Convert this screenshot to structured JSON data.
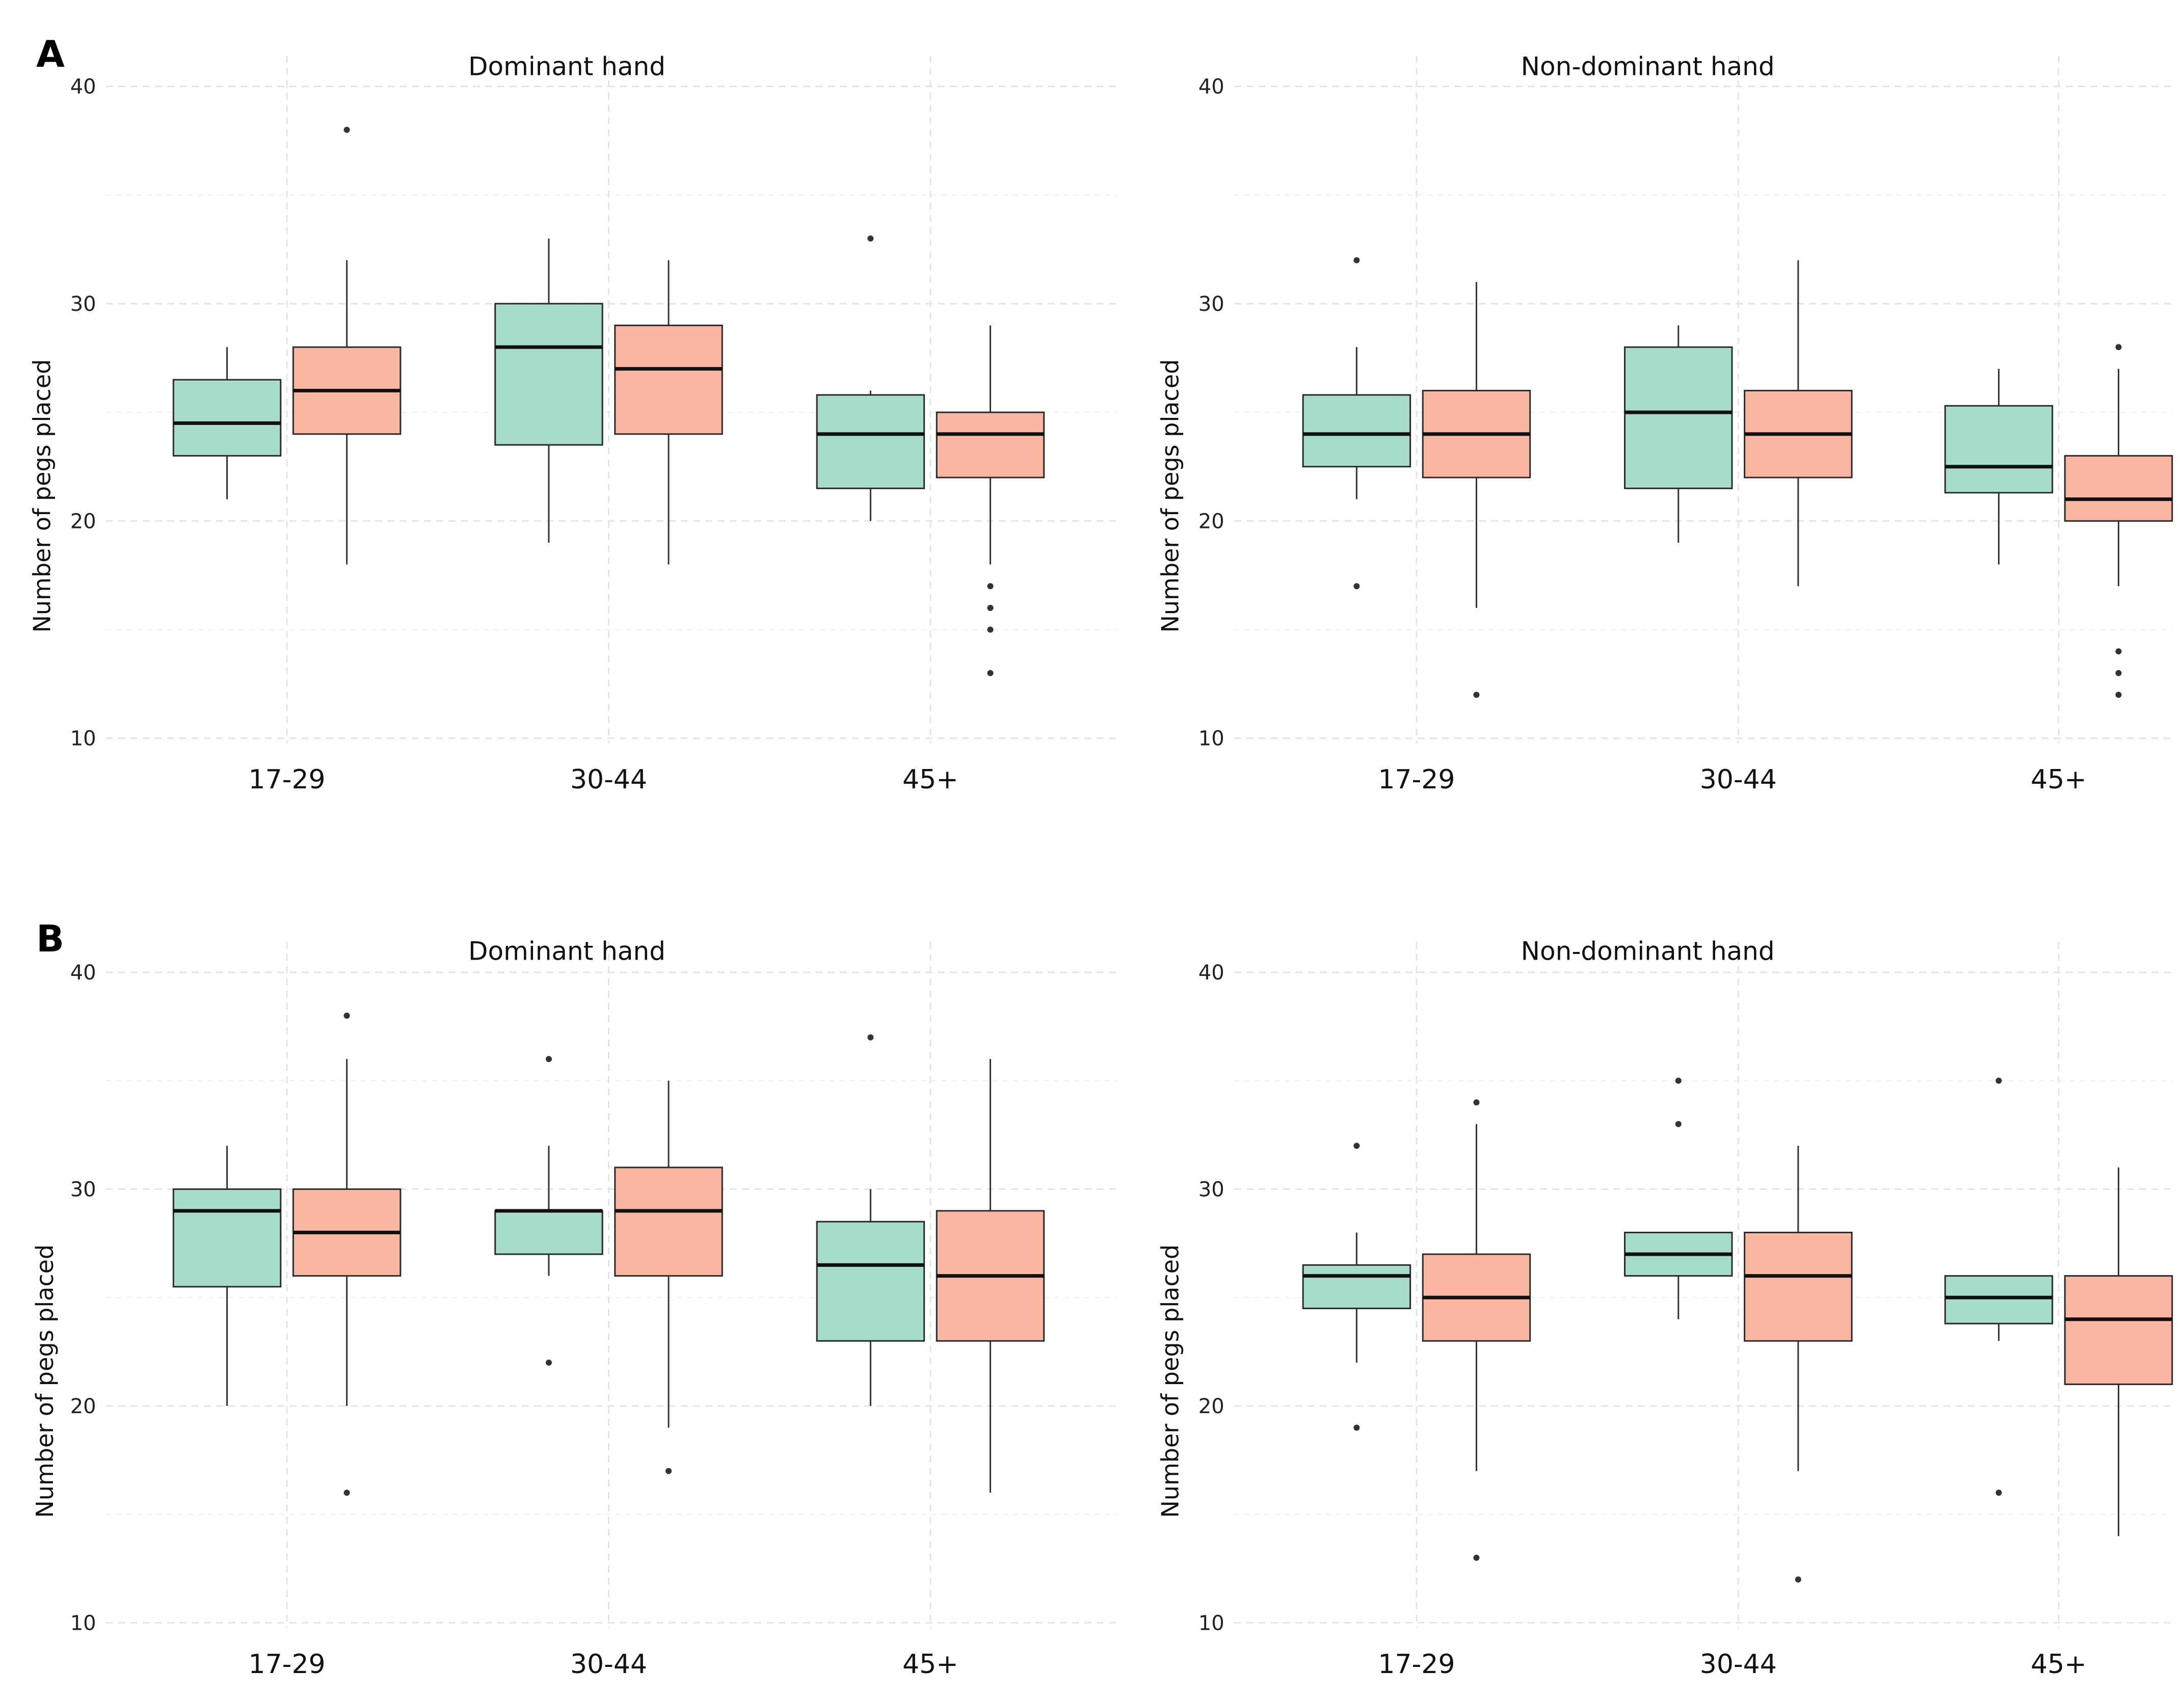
{
  "colors": {
    "group1": "#a6dcc8",
    "group2": "#f9b6a0"
  },
  "chart_data": [
    {
      "type": "box",
      "panel": "A",
      "title": "Dominant hand",
      "xlabel": "",
      "ylabel": "Number of pegs placed",
      "ylim": [
        10,
        40
      ],
      "yticks": [
        "10",
        "20",
        "30",
        "40"
      ],
      "categories": [
        "17-29",
        "30-44",
        "45+"
      ],
      "series": [
        {
          "name": "group1",
          "boxes": [
            {
              "min": 21,
              "q1": 23,
              "median": 24.5,
              "q3": 26.5,
              "max": 28,
              "outliers": []
            },
            {
              "min": 19,
              "q1": 23.5,
              "median": 28,
              "q3": 30,
              "max": 33,
              "outliers": []
            },
            {
              "min": 20,
              "q1": 21.5,
              "median": 24,
              "q3": 25.8,
              "max": 26,
              "outliers": [
                33
              ]
            }
          ]
        },
        {
          "name": "group2",
          "boxes": [
            {
              "min": 18,
              "q1": 24,
              "median": 26,
              "q3": 28,
              "max": 32,
              "outliers": [
                38
              ]
            },
            {
              "min": 18,
              "q1": 24,
              "median": 27,
              "q3": 29,
              "max": 32,
              "outliers": []
            },
            {
              "min": 18,
              "q1": 22,
              "median": 24,
              "q3": 25,
              "max": 29,
              "outliers": [
                17,
                16,
                16,
                15,
                13
              ]
            }
          ]
        }
      ]
    },
    {
      "type": "box",
      "panel": "",
      "title": "Non-dominant hand",
      "xlabel": "",
      "ylabel": "Number of pegs placed",
      "ylim": [
        10,
        40
      ],
      "yticks": [
        "10",
        "20",
        "30",
        "40"
      ],
      "categories": [
        "17-29",
        "30-44",
        "45+"
      ],
      "series": [
        {
          "name": "group1",
          "boxes": [
            {
              "min": 21,
              "q1": 22.5,
              "median": 24,
              "q3": 25.8,
              "max": 28,
              "outliers": [
                32,
                17
              ]
            },
            {
              "min": 19,
              "q1": 21.5,
              "median": 25,
              "q3": 28,
              "max": 29,
              "outliers": []
            },
            {
              "min": 18,
              "q1": 21.3,
              "median": 22.5,
              "q3": 25.3,
              "max": 27,
              "outliers": []
            }
          ]
        },
        {
          "name": "group2",
          "boxes": [
            {
              "min": 16,
              "q1": 22,
              "median": 24,
              "q3": 26,
              "max": 31,
              "outliers": [
                12
              ]
            },
            {
              "min": 17,
              "q1": 22,
              "median": 24,
              "q3": 26,
              "max": 32,
              "outliers": []
            },
            {
              "min": 17,
              "q1": 20,
              "median": 21,
              "q3": 23,
              "max": 27,
              "outliers": [
                28,
                14,
                13,
                12
              ]
            }
          ]
        }
      ]
    },
    {
      "type": "box",
      "panel": "B",
      "title": "Dominant hand",
      "xlabel": "",
      "ylabel": "Number of pegs placed",
      "ylim": [
        10,
        40
      ],
      "yticks": [
        "10",
        "20",
        "30",
        "40"
      ],
      "categories": [
        "17-29",
        "30-44",
        "45+"
      ],
      "series": [
        {
          "name": "group1",
          "boxes": [
            {
              "min": 20,
              "q1": 25.5,
              "median": 29,
              "q3": 30,
              "max": 32,
              "outliers": []
            },
            {
              "min": 26,
              "q1": 27,
              "median": 29,
              "q3": 29,
              "max": 32,
              "outliers": [
                36,
                22
              ]
            },
            {
              "min": 20,
              "q1": 23,
              "median": 26.5,
              "q3": 28.5,
              "max": 30,
              "outliers": [
                37
              ]
            }
          ]
        },
        {
          "name": "group2",
          "boxes": [
            {
              "min": 20,
              "q1": 26,
              "median": 28,
              "q3": 30,
              "max": 36,
              "outliers": [
                38,
                16
              ]
            },
            {
              "min": 19,
              "q1": 26,
              "median": 29,
              "q3": 31,
              "max": 35,
              "outliers": [
                17
              ]
            },
            {
              "min": 16,
              "q1": 23,
              "median": 26,
              "q3": 29,
              "max": 36,
              "outliers": []
            }
          ]
        }
      ]
    },
    {
      "type": "box",
      "panel": "",
      "title": "Non-dominant hand",
      "xlabel": "",
      "ylabel": "Number of pegs placed",
      "ylim": [
        10,
        40
      ],
      "yticks": [
        "10",
        "20",
        "30",
        "40"
      ],
      "categories": [
        "17-29",
        "30-44",
        "45+"
      ],
      "series": [
        {
          "name": "group1",
          "boxes": [
            {
              "min": 22,
              "q1": 24.5,
              "median": 26,
              "q3": 26.5,
              "max": 28,
              "outliers": [
                32,
                19
              ]
            },
            {
              "min": 24,
              "q1": 26,
              "median": 27,
              "q3": 28,
              "max": 28,
              "outliers": [
                35,
                33
              ]
            },
            {
              "min": 23,
              "q1": 23.8,
              "median": 25,
              "q3": 26,
              "max": 26,
              "outliers": [
                35,
                16
              ]
            }
          ]
        },
        {
          "name": "group2",
          "boxes": [
            {
              "min": 17,
              "q1": 23,
              "median": 25,
              "q3": 27,
              "max": 33,
              "outliers": [
                34,
                13
              ]
            },
            {
              "min": 17,
              "q1": 23,
              "median": 26,
              "q3": 28,
              "max": 32,
              "outliers": [
                12
              ]
            },
            {
              "min": 14,
              "q1": 21,
              "median": 24,
              "q3": 26,
              "max": 31,
              "outliers": []
            }
          ]
        }
      ]
    }
  ]
}
